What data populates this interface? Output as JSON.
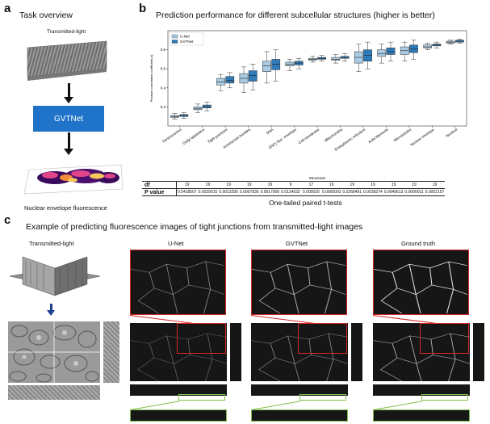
{
  "panel_a": {
    "letter": "a",
    "title": "Task overview",
    "input_label": "Transmitted-light",
    "model_label": "GVTNet",
    "output_label": "Nuclear envelope fluorescence"
  },
  "panel_b": {
    "letter": "b",
    "title": "Prediction performance for different subcellular structures (higher is better)",
    "table": {
      "row1_label": "df",
      "row2_label": "P value",
      "df": [
        "19",
        "19",
        "19",
        "19",
        "19",
        "9",
        "17",
        "19",
        "19",
        "19",
        "19",
        "19",
        "19"
      ],
      "p": [
        "0.0418507",
        "0.0039015",
        "0.0013290",
        "0.0007836",
        "0.0017900",
        "0.0124532",
        "0.000029",
        "0.0000003",
        "0.0268491",
        "0.0038274",
        "0.0049613",
        "0.0000011",
        "0.0002157"
      ],
      "caption": "One-tailed paired t-tests"
    }
  },
  "chart_data": {
    "type": "box",
    "ylabel": "Pearson correlation coefficient (r)",
    "xlabel": "Structures",
    "ylim": [
      0.0,
      1.0
    ],
    "yticks": [
      "0.2",
      "0.4",
      "0.6",
      "0.8"
    ],
    "categories": [
      "Desmosomes",
      "Golgi apparatus",
      "Tight junctions",
      "Actomyosin bundles",
      "DNA",
      "(DIC) Nuc. envelope",
      "Cell membrane",
      "Mitochondria",
      "Endoplasmic reticulum",
      "Actin filaments",
      "Microtubules",
      "Nuclear envelope",
      "Nucleoli"
    ],
    "legend": {
      "position": "top-left"
    },
    "series": [
      {
        "name": "U-Net",
        "color": "#a9cbe3",
        "boxes": [
          [
            0.07,
            0.09,
            0.1,
            0.11,
            0.13
          ],
          [
            0.14,
            0.17,
            0.18,
            0.2,
            0.23
          ],
          [
            0.37,
            0.43,
            0.46,
            0.5,
            0.54
          ],
          [
            0.35,
            0.45,
            0.5,
            0.55,
            0.62
          ],
          [
            0.45,
            0.57,
            0.63,
            0.68,
            0.78
          ],
          [
            0.58,
            0.63,
            0.65,
            0.67,
            0.7
          ],
          [
            0.67,
            0.69,
            0.7,
            0.71,
            0.73
          ],
          [
            0.66,
            0.69,
            0.7,
            0.72,
            0.75
          ],
          [
            0.57,
            0.66,
            0.72,
            0.78,
            0.86
          ],
          [
            0.66,
            0.73,
            0.76,
            0.8,
            0.86
          ],
          [
            0.68,
            0.75,
            0.79,
            0.83,
            0.88
          ],
          [
            0.8,
            0.82,
            0.83,
            0.85,
            0.87
          ],
          [
            0.86,
            0.87,
            0.88,
            0.89,
            0.9
          ]
        ]
      },
      {
        "name": "GVTNet",
        "color": "#2f7ab8",
        "boxes": [
          [
            0.08,
            0.1,
            0.11,
            0.12,
            0.14
          ],
          [
            0.16,
            0.19,
            0.2,
            0.22,
            0.25
          ],
          [
            0.4,
            0.45,
            0.48,
            0.52,
            0.56
          ],
          [
            0.38,
            0.47,
            0.53,
            0.58,
            0.65
          ],
          [
            0.47,
            0.59,
            0.65,
            0.7,
            0.8
          ],
          [
            0.6,
            0.64,
            0.66,
            0.68,
            0.71
          ],
          [
            0.68,
            0.7,
            0.71,
            0.72,
            0.74
          ],
          [
            0.68,
            0.71,
            0.72,
            0.73,
            0.76
          ],
          [
            0.6,
            0.68,
            0.74,
            0.8,
            0.88
          ],
          [
            0.68,
            0.75,
            0.78,
            0.82,
            0.88
          ],
          [
            0.7,
            0.77,
            0.81,
            0.85,
            0.9
          ],
          [
            0.82,
            0.84,
            0.85,
            0.86,
            0.88
          ],
          [
            0.87,
            0.88,
            0.89,
            0.9,
            0.91
          ]
        ]
      }
    ]
  },
  "panel_c": {
    "letter": "c",
    "title": "Example of predicting fluorescence images of tight junctions from transmitted-light images",
    "col_labels": [
      "Transmitted-light",
      "U-Net",
      "GVTNet",
      "Ground truth"
    ]
  },
  "colors": {
    "accent_blue": "#1f73c9",
    "zoom_red": "#d62828",
    "zoom_green": "#7fc04a"
  }
}
